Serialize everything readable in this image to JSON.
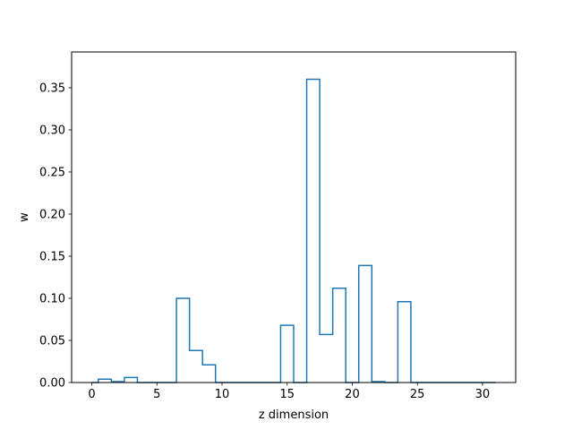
{
  "chart_data": {
    "type": "step",
    "title": "",
    "xlabel": "z dimension",
    "ylabel": "w",
    "xlim": [
      -1.55,
      32.55
    ],
    "ylim": [
      0,
      0.3925
    ],
    "xticks": [
      0,
      5,
      10,
      15,
      20,
      25,
      30
    ],
    "yticks": [
      0.0,
      0.05,
      0.1,
      0.15,
      0.2,
      0.25,
      0.3,
      0.35
    ],
    "ytick_labels": [
      "0.00",
      "0.05",
      "0.10",
      "0.15",
      "0.20",
      "0.25",
      "0.30",
      "0.35"
    ],
    "grid": false,
    "legend": "none",
    "series": [
      {
        "step_where": "mid",
        "x": [
          0,
          1,
          2,
          3,
          4,
          5,
          6,
          7,
          8,
          9,
          10,
          11,
          12,
          13,
          14,
          15,
          16,
          17,
          18,
          19,
          20,
          21,
          22,
          23,
          24,
          25,
          26,
          27,
          28,
          29,
          30,
          31
        ],
        "values": [
          0.0,
          0.004,
          0.001,
          0.006,
          0.0,
          0.0,
          0.0,
          0.1,
          0.038,
          0.021,
          0.0,
          0.0,
          0.0,
          0.0,
          0.0,
          0.068,
          0.0,
          0.36,
          0.057,
          0.112,
          0.0,
          0.139,
          0.001,
          0.0,
          0.096,
          0.0,
          0.0,
          0.0,
          0.0,
          0.0,
          0.0,
          0.0
        ],
        "color": "#1f77b4"
      }
    ]
  }
}
